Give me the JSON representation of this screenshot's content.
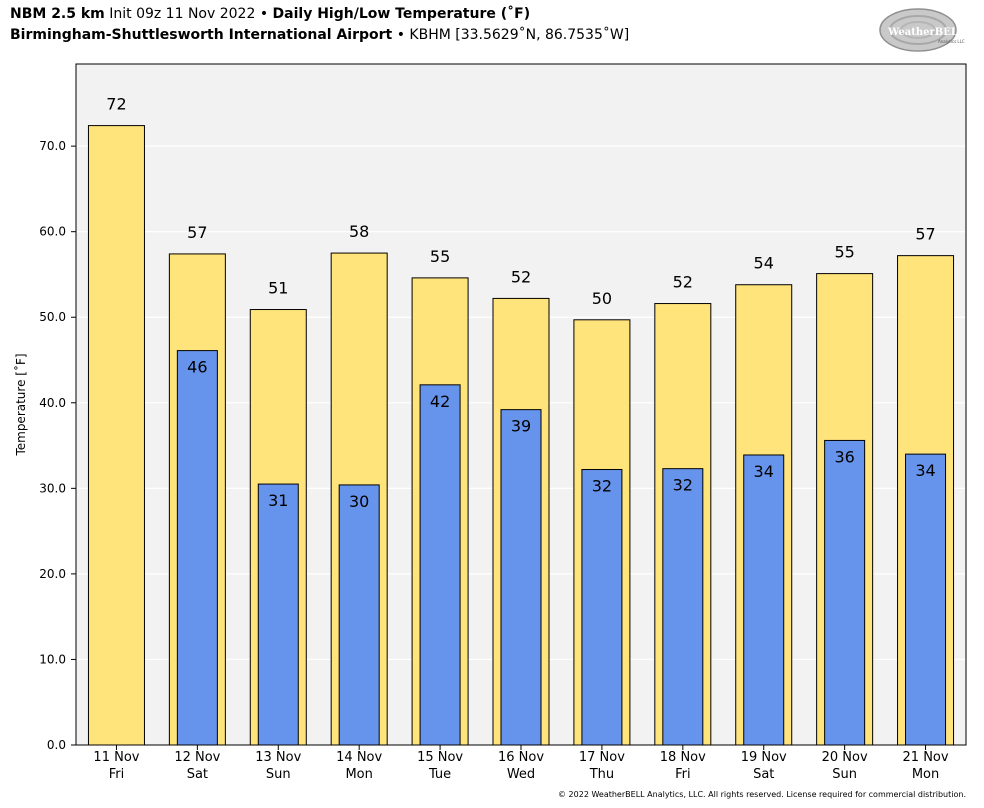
{
  "header": {
    "model": "NBM 2.5 km",
    "init": "Init 09z 11 Nov 2022",
    "sep1": "•",
    "product": "Daily High/Low Temperature (˚F)",
    "station": "Birmingham-Shuttlesworth International Airport",
    "sep2": "•",
    "station_info": "KBHM [33.5629˚N, 86.7535˚W]"
  },
  "logo": {
    "text_main": "WeatherBELL",
    "text_sub": "Analytics LLC"
  },
  "footer": "© 2022 WeatherBELL Analytics, LLC. All rights reserved. License required for commercial distribution.",
  "colors": {
    "high": "#ffe47b",
    "low": "#6694ec",
    "plot_bg": "#f2f2f2",
    "grid": "#ffffff"
  },
  "chart_data": {
    "type": "bar",
    "categories": [
      [
        "11 Nov",
        "Fri"
      ],
      [
        "12 Nov",
        "Sat"
      ],
      [
        "13 Nov",
        "Sun"
      ],
      [
        "14 Nov",
        "Mon"
      ],
      [
        "15 Nov",
        "Tue"
      ],
      [
        "16 Nov",
        "Wed"
      ],
      [
        "17 Nov",
        "Thu"
      ],
      [
        "18 Nov",
        "Fri"
      ],
      [
        "19 Nov",
        "Sat"
      ],
      [
        "20 Nov",
        "Sun"
      ],
      [
        "21 Nov",
        "Mon"
      ]
    ],
    "series": [
      {
        "values": [
          72.4,
          57.4,
          50.9,
          57.5,
          54.6,
          52.2,
          49.7,
          51.6,
          53.8,
          55.1,
          57.2
        ],
        "labels": [
          "72",
          "57",
          "51",
          "58",
          "55",
          "52",
          "50",
          "52",
          "54",
          "55",
          "57"
        ]
      },
      {
        "values": [
          null,
          46.1,
          30.5,
          30.4,
          42.1,
          39.2,
          32.2,
          32.3,
          33.9,
          35.6,
          34.0
        ],
        "labels": [
          "",
          "46",
          "31",
          "30",
          "42",
          "39",
          "32",
          "32",
          "34",
          "36",
          "34"
        ]
      }
    ],
    "ylabel": "Temperature [˚F]",
    "ylim": [
      0,
      79.6
    ],
    "yticks": [
      "0.0",
      "10.0",
      "20.0",
      "30.0",
      "40.0",
      "50.0",
      "60.0",
      "70.0"
    ],
    "grid": true
  }
}
